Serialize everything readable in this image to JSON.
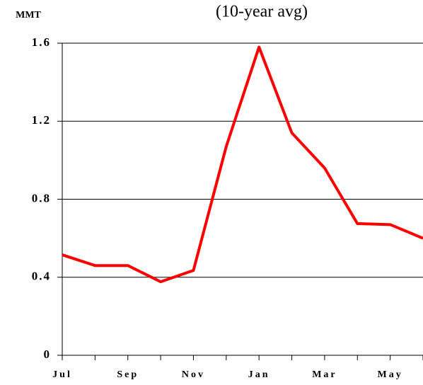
{
  "chart_data": {
    "type": "line",
    "title": "(10-year avg)",
    "y_label": "MMT",
    "categories": [
      "Jul",
      null,
      "Sep",
      null,
      "Nov",
      null,
      "Jan",
      null,
      "Mar",
      null,
      "May",
      null
    ],
    "series": [
      {
        "name": "10-year avg",
        "color": "#ff0000",
        "values": [
          0.515,
          0.46,
          0.46,
          0.377,
          0.435,
          1.07,
          1.58,
          1.14,
          0.96,
          0.675,
          0.67,
          0.6
        ]
      }
    ],
    "ylim": [
      0,
      1.6
    ],
    "yticks": [
      0,
      0.4,
      0.8,
      1.2,
      1.6
    ],
    "grid": true
  }
}
